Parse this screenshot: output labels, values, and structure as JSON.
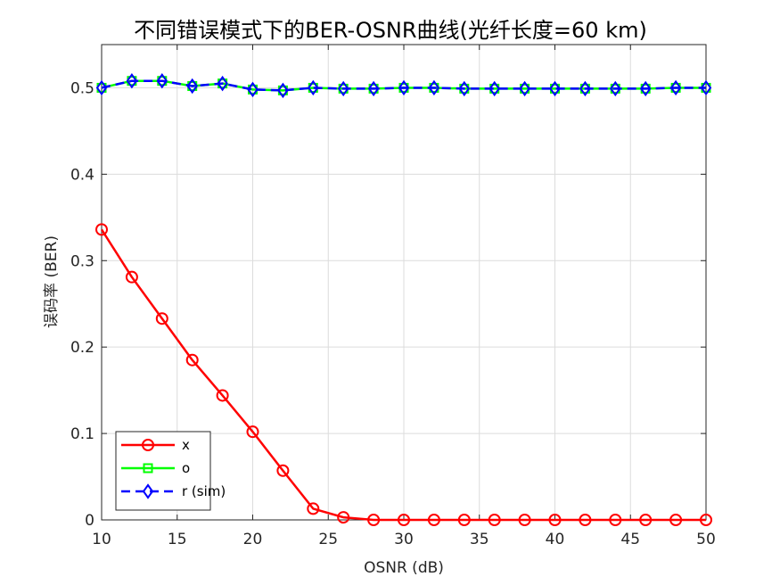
{
  "chart_data": {
    "type": "line",
    "title": "不同错误模式下的BER-OSNR曲线(光纤长度=60 km)",
    "xlabel": "OSNR (dB)",
    "ylabel": "误码率 (BER)",
    "xlim": [
      10,
      50
    ],
    "ylim": [
      0,
      0.55
    ],
    "xticks": [
      "10",
      "15",
      "20",
      "25",
      "30",
      "35",
      "40",
      "45",
      "50"
    ],
    "yticks": [
      "0",
      "0.1",
      "0.2",
      "0.3",
      "0.4",
      "0.5"
    ],
    "grid": true,
    "legend_position": "bottom-left",
    "x": [
      10,
      12,
      14,
      16,
      18,
      20,
      22,
      24,
      26,
      28,
      30,
      32,
      34,
      36,
      38,
      40,
      42,
      44,
      46,
      48,
      50
    ],
    "series": [
      {
        "name": "x",
        "color": "#ff0000",
        "marker": "circle",
        "line_style": "solid",
        "values": [
          0.336,
          0.281,
          0.233,
          0.185,
          0.144,
          0.102,
          0.057,
          0.013,
          0.003,
          0.0,
          0.0,
          0.0,
          0.0,
          0.0,
          0.0,
          0.0,
          0.0,
          0.0,
          0.0,
          0.0,
          0.0
        ]
      },
      {
        "name": "o",
        "color": "#00ff00",
        "marker": "square",
        "line_style": "solid",
        "values": [
          0.5,
          0.508,
          0.508,
          0.502,
          0.505,
          0.498,
          0.497,
          0.5,
          0.499,
          0.499,
          0.5,
          0.5,
          0.499,
          0.499,
          0.499,
          0.499,
          0.499,
          0.499,
          0.499,
          0.5,
          0.5
        ]
      },
      {
        "name": "r (sim)",
        "color": "#0000ff",
        "marker": "diamond",
        "line_style": "dashed",
        "values": [
          0.5,
          0.508,
          0.508,
          0.502,
          0.505,
          0.498,
          0.497,
          0.5,
          0.499,
          0.499,
          0.5,
          0.5,
          0.499,
          0.499,
          0.499,
          0.499,
          0.499,
          0.499,
          0.499,
          0.5,
          0.5
        ]
      }
    ]
  }
}
